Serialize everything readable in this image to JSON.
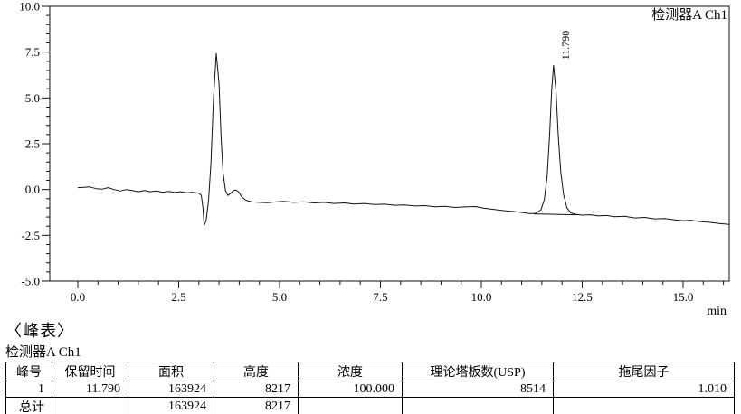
{
  "chart_data": {
    "type": "line",
    "title": "检测器A Ch1",
    "xlabel": "min",
    "ylabel": "",
    "xlim": [
      0,
      16.14
    ],
    "ylim": [
      -5,
      10
    ],
    "grid": false,
    "x_major_ticks": [
      0,
      2.5,
      5,
      7.5,
      10,
      12.5,
      15
    ],
    "x_major_tick_labels": [
      "0.0",
      "2.5",
      "5.0",
      "7.5",
      "10.0",
      "12.5",
      "15.0"
    ],
    "x_minor_tick_step": 0.5,
    "y_major_ticks": [
      -5,
      -2.5,
      0,
      2.5,
      5,
      7.5,
      10
    ],
    "y_major_tick_labels": [
      "-5.0",
      "-2.5",
      "0.0",
      "2.5",
      "5.0",
      "7.5",
      "10.0"
    ],
    "y_minor_tick_step": 0.5,
    "detector_label": "检测器A Ch1",
    "axis_unit_label": "min",
    "line_color": "#111111",
    "peaks": [
      {
        "retention_time": 11.79,
        "label": "11.790",
        "apex_value": 6.78
      }
    ],
    "integration_baseline": [
      [
        11.3,
        -1.33
      ],
      [
        12.4,
        -1.38
      ]
    ],
    "series": [
      {
        "name": "检测器A Ch1",
        "points": [
          [
            0.0,
            0.1
          ],
          [
            0.15,
            0.12
          ],
          [
            0.3,
            0.14
          ],
          [
            0.45,
            0.05
          ],
          [
            0.6,
            0.02
          ],
          [
            0.75,
            0.1
          ],
          [
            0.9,
            0.0
          ],
          [
            1.05,
            -0.08
          ],
          [
            1.2,
            0.0
          ],
          [
            1.35,
            -0.05
          ],
          [
            1.5,
            -0.12
          ],
          [
            1.65,
            -0.05
          ],
          [
            1.8,
            -0.12
          ],
          [
            1.95,
            -0.08
          ],
          [
            2.1,
            -0.15
          ],
          [
            2.25,
            -0.1
          ],
          [
            2.4,
            -0.16
          ],
          [
            2.55,
            -0.12
          ],
          [
            2.7,
            -0.18
          ],
          [
            2.85,
            -0.15
          ],
          [
            3.0,
            -0.2
          ],
          [
            3.06,
            -0.32
          ],
          [
            3.1,
            -1.0
          ],
          [
            3.13,
            -1.95
          ],
          [
            3.18,
            -1.7
          ],
          [
            3.24,
            -0.6
          ],
          [
            3.3,
            1.5
          ],
          [
            3.36,
            4.9
          ],
          [
            3.43,
            7.43
          ],
          [
            3.5,
            5.8
          ],
          [
            3.55,
            2.9
          ],
          [
            3.6,
            0.9
          ],
          [
            3.66,
            -0.05
          ],
          [
            3.72,
            -0.32
          ],
          [
            3.79,
            -0.2
          ],
          [
            3.86,
            -0.06
          ],
          [
            3.92,
            -0.02
          ],
          [
            3.99,
            -0.14
          ],
          [
            4.06,
            -0.4
          ],
          [
            4.16,
            -0.58
          ],
          [
            4.3,
            -0.67
          ],
          [
            4.5,
            -0.7
          ],
          [
            4.7,
            -0.72
          ],
          [
            4.9,
            -0.68
          ],
          [
            5.1,
            -0.65
          ],
          [
            5.35,
            -0.7
          ],
          [
            5.6,
            -0.67
          ],
          [
            5.85,
            -0.73
          ],
          [
            6.1,
            -0.7
          ],
          [
            6.35,
            -0.76
          ],
          [
            6.6,
            -0.73
          ],
          [
            6.85,
            -0.79
          ],
          [
            7.1,
            -0.76
          ],
          [
            7.35,
            -0.82
          ],
          [
            7.6,
            -0.8
          ],
          [
            7.85,
            -0.86
          ],
          [
            8.1,
            -0.84
          ],
          [
            8.35,
            -0.9
          ],
          [
            8.6,
            -0.88
          ],
          [
            8.85,
            -0.94
          ],
          [
            9.1,
            -0.92
          ],
          [
            9.35,
            -0.98
          ],
          [
            9.6,
            -0.95
          ],
          [
            9.85,
            -0.93
          ],
          [
            10.05,
            -1.02
          ],
          [
            10.3,
            -1.08
          ],
          [
            10.55,
            -1.15
          ],
          [
            10.8,
            -1.2
          ],
          [
            11.0,
            -1.25
          ],
          [
            11.2,
            -1.32
          ],
          [
            11.35,
            -1.3
          ],
          [
            11.48,
            -1.1
          ],
          [
            11.56,
            -0.55
          ],
          [
            11.63,
            0.7
          ],
          [
            11.69,
            2.9
          ],
          [
            11.74,
            5.3
          ],
          [
            11.79,
            6.78
          ],
          [
            11.85,
            5.4
          ],
          [
            11.91,
            2.8
          ],
          [
            11.97,
            0.9
          ],
          [
            12.04,
            -0.3
          ],
          [
            12.12,
            -1.0
          ],
          [
            12.22,
            -1.28
          ],
          [
            12.35,
            -1.36
          ],
          [
            12.5,
            -1.4
          ],
          [
            12.7,
            -1.38
          ],
          [
            12.9,
            -1.44
          ],
          [
            13.1,
            -1.42
          ],
          [
            13.3,
            -1.48
          ],
          [
            13.55,
            -1.46
          ],
          [
            13.8,
            -1.55
          ],
          [
            14.05,
            -1.52
          ],
          [
            14.3,
            -1.6
          ],
          [
            14.55,
            -1.58
          ],
          [
            14.8,
            -1.66
          ],
          [
            15.0,
            -1.7
          ],
          [
            15.2,
            -1.68
          ],
          [
            15.45,
            -1.76
          ],
          [
            15.7,
            -1.8
          ],
          [
            15.9,
            -1.85
          ],
          [
            16.14,
            -1.9
          ]
        ]
      }
    ]
  },
  "peak_table": {
    "section_title": "〈峰表〉",
    "detector": "检测器A Ch1",
    "headers": [
      "峰号",
      "保留时间",
      "面积",
      "高度",
      "浓度",
      "理论塔板数(USP)",
      "拖尾因子"
    ],
    "rows": [
      [
        "1",
        "11.790",
        "163924",
        "8217",
        "100.000",
        "8514",
        "1.010"
      ],
      [
        "总计",
        "",
        "163924",
        "8217",
        "",
        "",
        ""
      ]
    ]
  }
}
